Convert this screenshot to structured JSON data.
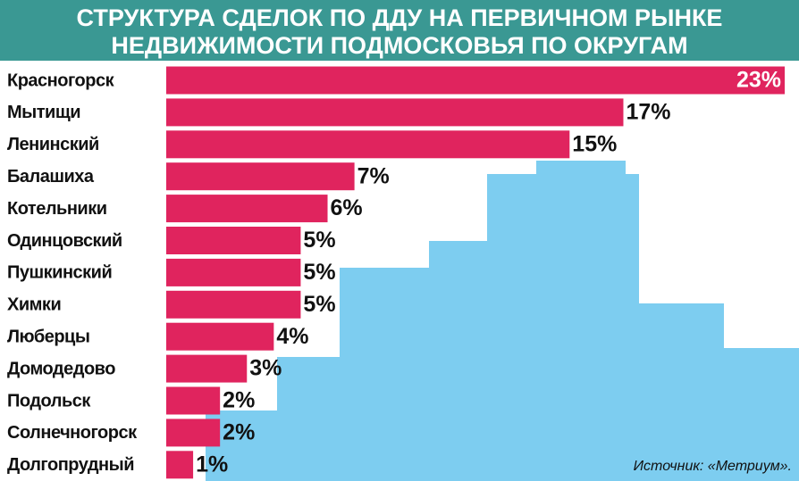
{
  "chart_data": {
    "type": "bar",
    "orientation": "horizontal",
    "title": [
      "СТРУКТУРА СДЕЛОК ПО ДДУ НА ПЕРВИЧНОМ РЫНКЕ",
      "НЕДВИЖИМОСТИ ПОДМОСКОВЬЯ ПО ОКРУГАМ"
    ],
    "categories": [
      "Красногорск",
      "Мытищи",
      "Ленинский",
      "Балашиха",
      "Котельники",
      "Одинцовский",
      "Пушкинский",
      "Химки",
      "Люберцы",
      "Домодедово",
      "Подольск",
      "Солнечногорск",
      "Долгопрудный"
    ],
    "values": [
      23,
      17,
      15,
      7,
      6,
      5,
      5,
      5,
      4,
      3,
      2,
      2,
      1
    ],
    "value_labels": [
      "23%",
      "17%",
      "15%",
      "7%",
      "6%",
      "5%",
      "5%",
      "5%",
      "4%",
      "3%",
      "2%",
      "2%",
      "1%"
    ],
    "color": "#e0245e",
    "source": "Источник: «Метриум»."
  }
}
